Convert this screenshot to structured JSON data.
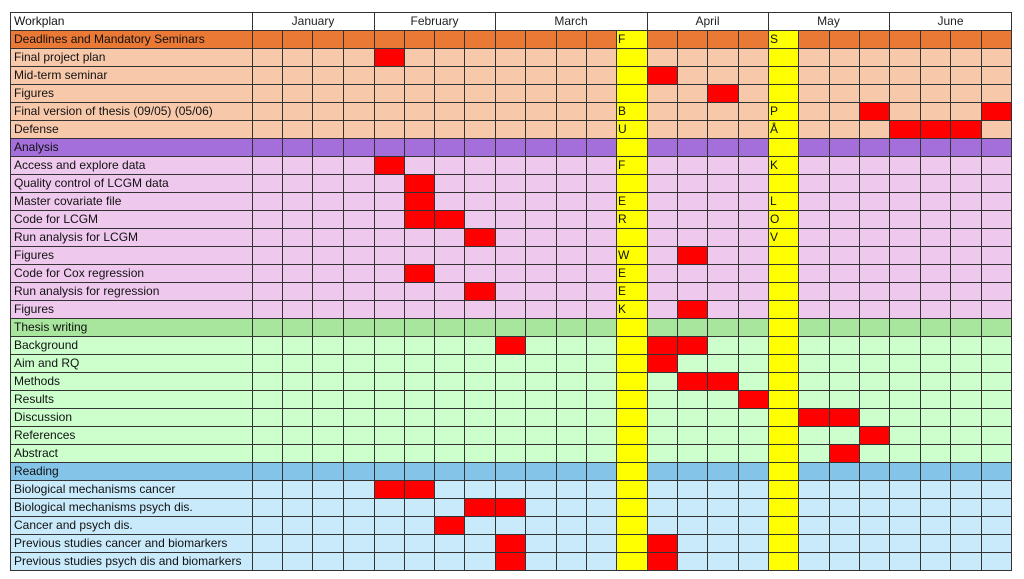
{
  "header": {
    "workplan_label": "Workplan",
    "months": [
      "January",
      "February",
      "March",
      "April",
      "May",
      "June"
    ]
  },
  "colors": {
    "deadline_section": "#e97935",
    "deadline_row": "#f7c9aa",
    "analysis_section": "#a46fdb",
    "analysis_row": "#efc8ee",
    "writing_section": "#a8e59d",
    "writing_row": "#ccffcc",
    "reading_section": "#84c4e8",
    "reading_row": "#c9eafb",
    "highlight": "#ffff00",
    "marker": "#ff0000"
  },
  "highlighted_columns_note": "",
  "sections": [
    {
      "title": "Deadlines and Mandatory Seminars",
      "key": "deadline",
      "rows": [
        {
          "label": "Final project plan",
          "marks": [
            4
          ]
        },
        {
          "label": "Mid-term seminar",
          "marks": [
            13
          ]
        },
        {
          "label": "Figures",
          "marks": [
            15
          ]
        },
        {
          "label": "Final version of thesis (09/05) (05/06)",
          "marks": [
            20,
            24
          ],
          "letters": {
            "12": "B",
            "17": "P"
          }
        },
        {
          "label": "Defense",
          "marks": [
            21,
            22,
            23
          ],
          "letters": {
            "12": "U",
            "17": "Å"
          }
        }
      ],
      "section_letters": {
        "12": "F",
        "17": "S"
      }
    },
    {
      "title": "Analysis",
      "key": "analysis",
      "rows": [
        {
          "label": "Access and explore data",
          "marks": [
            4
          ],
          "letters": {
            "12": "F",
            "17": "K"
          }
        },
        {
          "label": "Quality control of LCGM data",
          "marks": [
            5
          ]
        },
        {
          "label": "Master covariate file",
          "marks": [
            5
          ],
          "letters": {
            "12": "E",
            "17": "L"
          }
        },
        {
          "label": "Code for LCGM",
          "marks": [
            5,
            6
          ],
          "letters": {
            "12": "R",
            "17": "O"
          }
        },
        {
          "label": "Run analysis for LCGM",
          "marks": [
            7
          ],
          "letters": {
            "17": "V"
          }
        },
        {
          "label": "Figures",
          "marks": [
            14
          ],
          "letters": {
            "12": "W"
          }
        },
        {
          "label": "Code for Cox regression",
          "marks": [
            5
          ],
          "letters": {
            "12": "E"
          }
        },
        {
          "label": "Run analysis for regression",
          "marks": [
            7
          ],
          "letters": {
            "12": "E"
          }
        },
        {
          "label": "Figures",
          "marks": [
            14
          ],
          "letters": {
            "12": "K"
          }
        }
      ]
    },
    {
      "title": "Thesis writing",
      "key": "writing",
      "rows": [
        {
          "label": "Background",
          "marks": [
            8,
            13,
            14
          ]
        },
        {
          "label": "Aim and RQ",
          "marks": [
            13
          ]
        },
        {
          "label": "Methods",
          "marks": [
            14,
            15
          ]
        },
        {
          "label": "Results",
          "marks": [
            16
          ]
        },
        {
          "label": "Discussion",
          "marks": [
            18,
            19
          ]
        },
        {
          "label": "References",
          "marks": [
            20
          ]
        },
        {
          "label": "Abstract",
          "marks": [
            19
          ]
        }
      ]
    },
    {
      "title": "Reading",
      "key": "reading",
      "rows": [
        {
          "label": "Biological mechanisms cancer",
          "marks": [
            4,
            5
          ]
        },
        {
          "label": "Biological mechanisms psych dis.",
          "marks": [
            7,
            8
          ]
        },
        {
          "label": "Cancer and psych dis.",
          "marks": [
            6
          ]
        },
        {
          "label": "Previous studies cancer and biomarkers",
          "marks": [
            8,
            13
          ]
        },
        {
          "label": "Previous studies psych dis and biomarkers",
          "marks": [
            8,
            13
          ]
        }
      ]
    }
  ]
}
